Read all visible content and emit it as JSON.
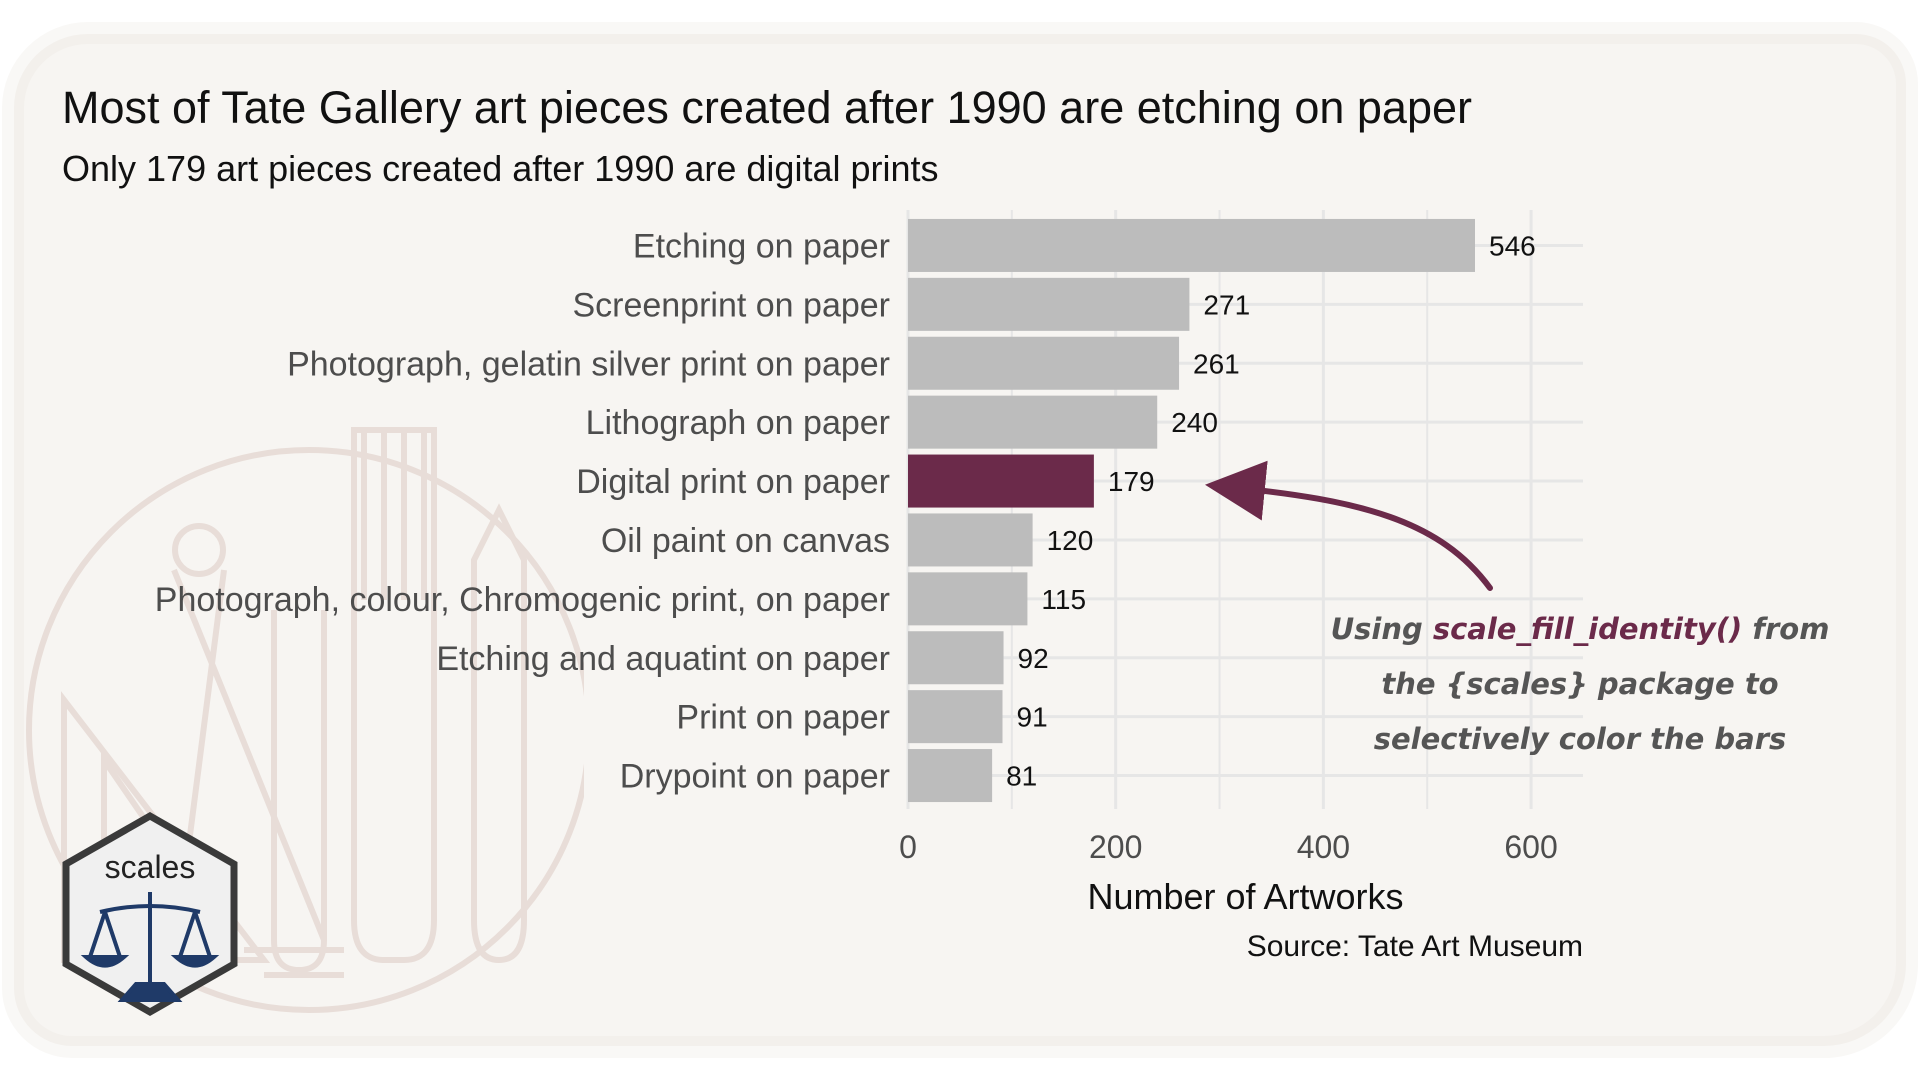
{
  "title": "Most of Tate Gallery art pieces created after 1990 are etching on paper",
  "subtitle": "Only 179 art pieces created after 1990 are digital prints",
  "caption": "Source: Tate Art Museum",
  "annotation": {
    "before": "Using ",
    "highlight": "scale_fill_identity()",
    "after": " from the {scales} package to selectively color the bars"
  },
  "logo": {
    "text": "scales"
  },
  "colors": {
    "bar": "#bcbcbc",
    "highlight": "#6b2a4a",
    "grid": "#e6e6e6",
    "arrow": "#6b2a4a"
  },
  "chart_data": {
    "type": "bar",
    "orientation": "horizontal",
    "categories": [
      "Etching on paper",
      "Screenprint on paper",
      "Photograph, gelatin silver print on paper",
      "Lithograph on paper",
      "Digital print on paper",
      "Oil paint on canvas",
      "Photograph, colour, Chromogenic print, on paper",
      "Etching and aquatint on paper",
      "Print on paper",
      "Drypoint on paper"
    ],
    "values": [
      546,
      271,
      261,
      240,
      179,
      120,
      115,
      92,
      91,
      81
    ],
    "highlight_index": 4,
    "xlabel": "Number of Artworks",
    "ylabel": "",
    "xlim": [
      0,
      650
    ],
    "xticks": [
      0,
      200,
      400,
      600
    ],
    "grid": true
  }
}
